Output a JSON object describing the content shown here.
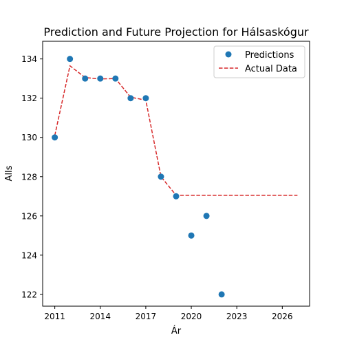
{
  "chart_data": {
    "type": "scatter",
    "title": "Prediction and Future Projection for Hálsaskógur",
    "xlabel": "Ár",
    "ylabel": "Alls",
    "xlim": [
      2010.2,
      2027.8
    ],
    "ylim": [
      121.4,
      134.9
    ],
    "x_ticks": [
      2011,
      2014,
      2017,
      2020,
      2023,
      2026
    ],
    "y_ticks": [
      122,
      124,
      126,
      128,
      130,
      132,
      134
    ],
    "grid": false,
    "legend_position": "top-right",
    "series": [
      {
        "name": "Predictions",
        "kind": "scatter",
        "color": "#1f77b4",
        "x": [
          2011,
          2012,
          2013,
          2014,
          2015,
          2016,
          2017,
          2018,
          2019,
          2020,
          2021,
          2022
        ],
        "y": [
          130,
          134,
          133,
          133,
          133,
          132,
          132,
          128,
          127,
          125,
          126,
          122
        ]
      },
      {
        "name": "Actual Data",
        "kind": "line",
        "style": "dashed",
        "color": "#d62728",
        "x": [
          2011,
          2012,
          2013,
          2014,
          2015,
          2016,
          2017,
          2018,
          2019,
          2020,
          2021,
          2022,
          2023,
          2024,
          2025,
          2026,
          2027
        ],
        "y": [
          130.1,
          133.65,
          133.05,
          132.98,
          133.0,
          132.05,
          131.9,
          128.0,
          127.05,
          127.05,
          127.05,
          127.05,
          127.05,
          127.05,
          127.05,
          127.05,
          127.05
        ]
      }
    ]
  }
}
